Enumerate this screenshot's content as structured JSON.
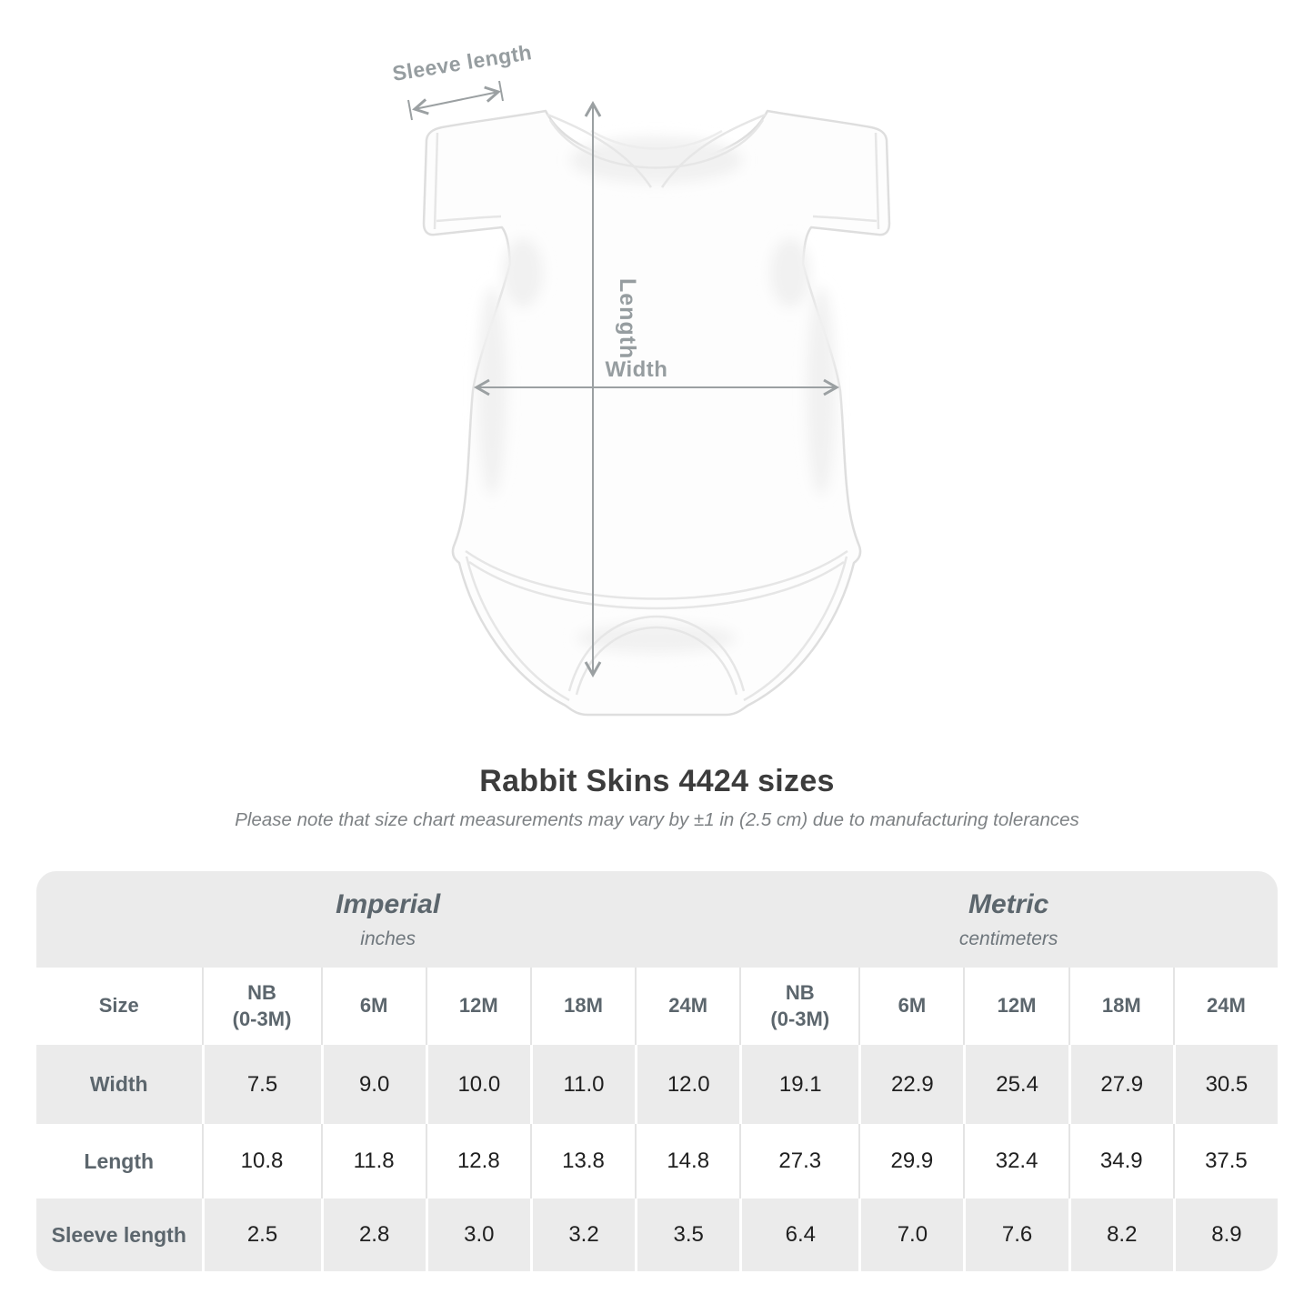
{
  "diagram": {
    "sleeve_length_label": "Sleeve length",
    "length_label": "Length",
    "width_label": "Width"
  },
  "heading": {
    "title": "Rabbit Skins 4424 sizes",
    "note": "Please note that size chart measurements may vary by ±1 in (2.5 cm) due to manufacturing tolerances"
  },
  "size_table": {
    "corner_label": "Size",
    "groups": [
      {
        "name": "Imperial",
        "unit": "inches"
      },
      {
        "name": "Metric",
        "unit": "centimeters"
      }
    ],
    "size_headers": [
      "NB\n(0-3M)",
      "6M",
      "12M",
      "18M",
      "24M",
      "NB\n(0-3M)",
      "6M",
      "12M",
      "18M",
      "24M"
    ],
    "rows": [
      {
        "label": "Width",
        "values": [
          "7.5",
          "9.0",
          "10.0",
          "11.0",
          "12.0",
          "19.1",
          "22.9",
          "25.4",
          "27.9",
          "30.5"
        ]
      },
      {
        "label": "Length",
        "values": [
          "10.8",
          "11.8",
          "12.8",
          "13.8",
          "14.8",
          "27.3",
          "29.9",
          "32.4",
          "34.9",
          "37.5"
        ]
      },
      {
        "label": "Sleeve length",
        "values": [
          "2.5",
          "2.8",
          "3.0",
          "3.2",
          "3.5",
          "6.4",
          "7.0",
          "7.6",
          "8.2",
          "8.9"
        ]
      }
    ]
  },
  "chart_data": {
    "type": "table",
    "title": "Rabbit Skins 4424 sizes",
    "note": "Please note that size chart measurements may vary by ±1 in (2.5 cm) due to manufacturing tolerances",
    "columns": [
      "NB (0-3M)",
      "6M",
      "12M",
      "18M",
      "24M"
    ],
    "series": [
      {
        "name": "Width (inches)",
        "values": [
          7.5,
          9.0,
          10.0,
          11.0,
          12.0
        ]
      },
      {
        "name": "Length (inches)",
        "values": [
          10.8,
          11.8,
          12.8,
          13.8,
          14.8
        ]
      },
      {
        "name": "Sleeve length (inches)",
        "values": [
          2.5,
          2.8,
          3.0,
          3.2,
          3.5
        ]
      },
      {
        "name": "Width (centimeters)",
        "values": [
          19.1,
          22.9,
          25.4,
          27.9,
          30.5
        ]
      },
      {
        "name": "Length (centimeters)",
        "values": [
          27.3,
          29.9,
          32.4,
          34.9,
          37.5
        ]
      },
      {
        "name": "Sleeve length (centimeters)",
        "values": [
          6.4,
          7.0,
          7.6,
          8.2,
          8.9
        ]
      }
    ]
  },
  "colors": {
    "background": "#ffffff",
    "table_band_gray": "#ebebeb",
    "header_text": "#5c666d",
    "value_text": "#202020",
    "title_text": "#3c3c3c",
    "note_text": "#7d8184",
    "annotation_gray": "#9aa0a3",
    "separator_light": "#e4e4e4",
    "garment_outline": "#dedede"
  }
}
